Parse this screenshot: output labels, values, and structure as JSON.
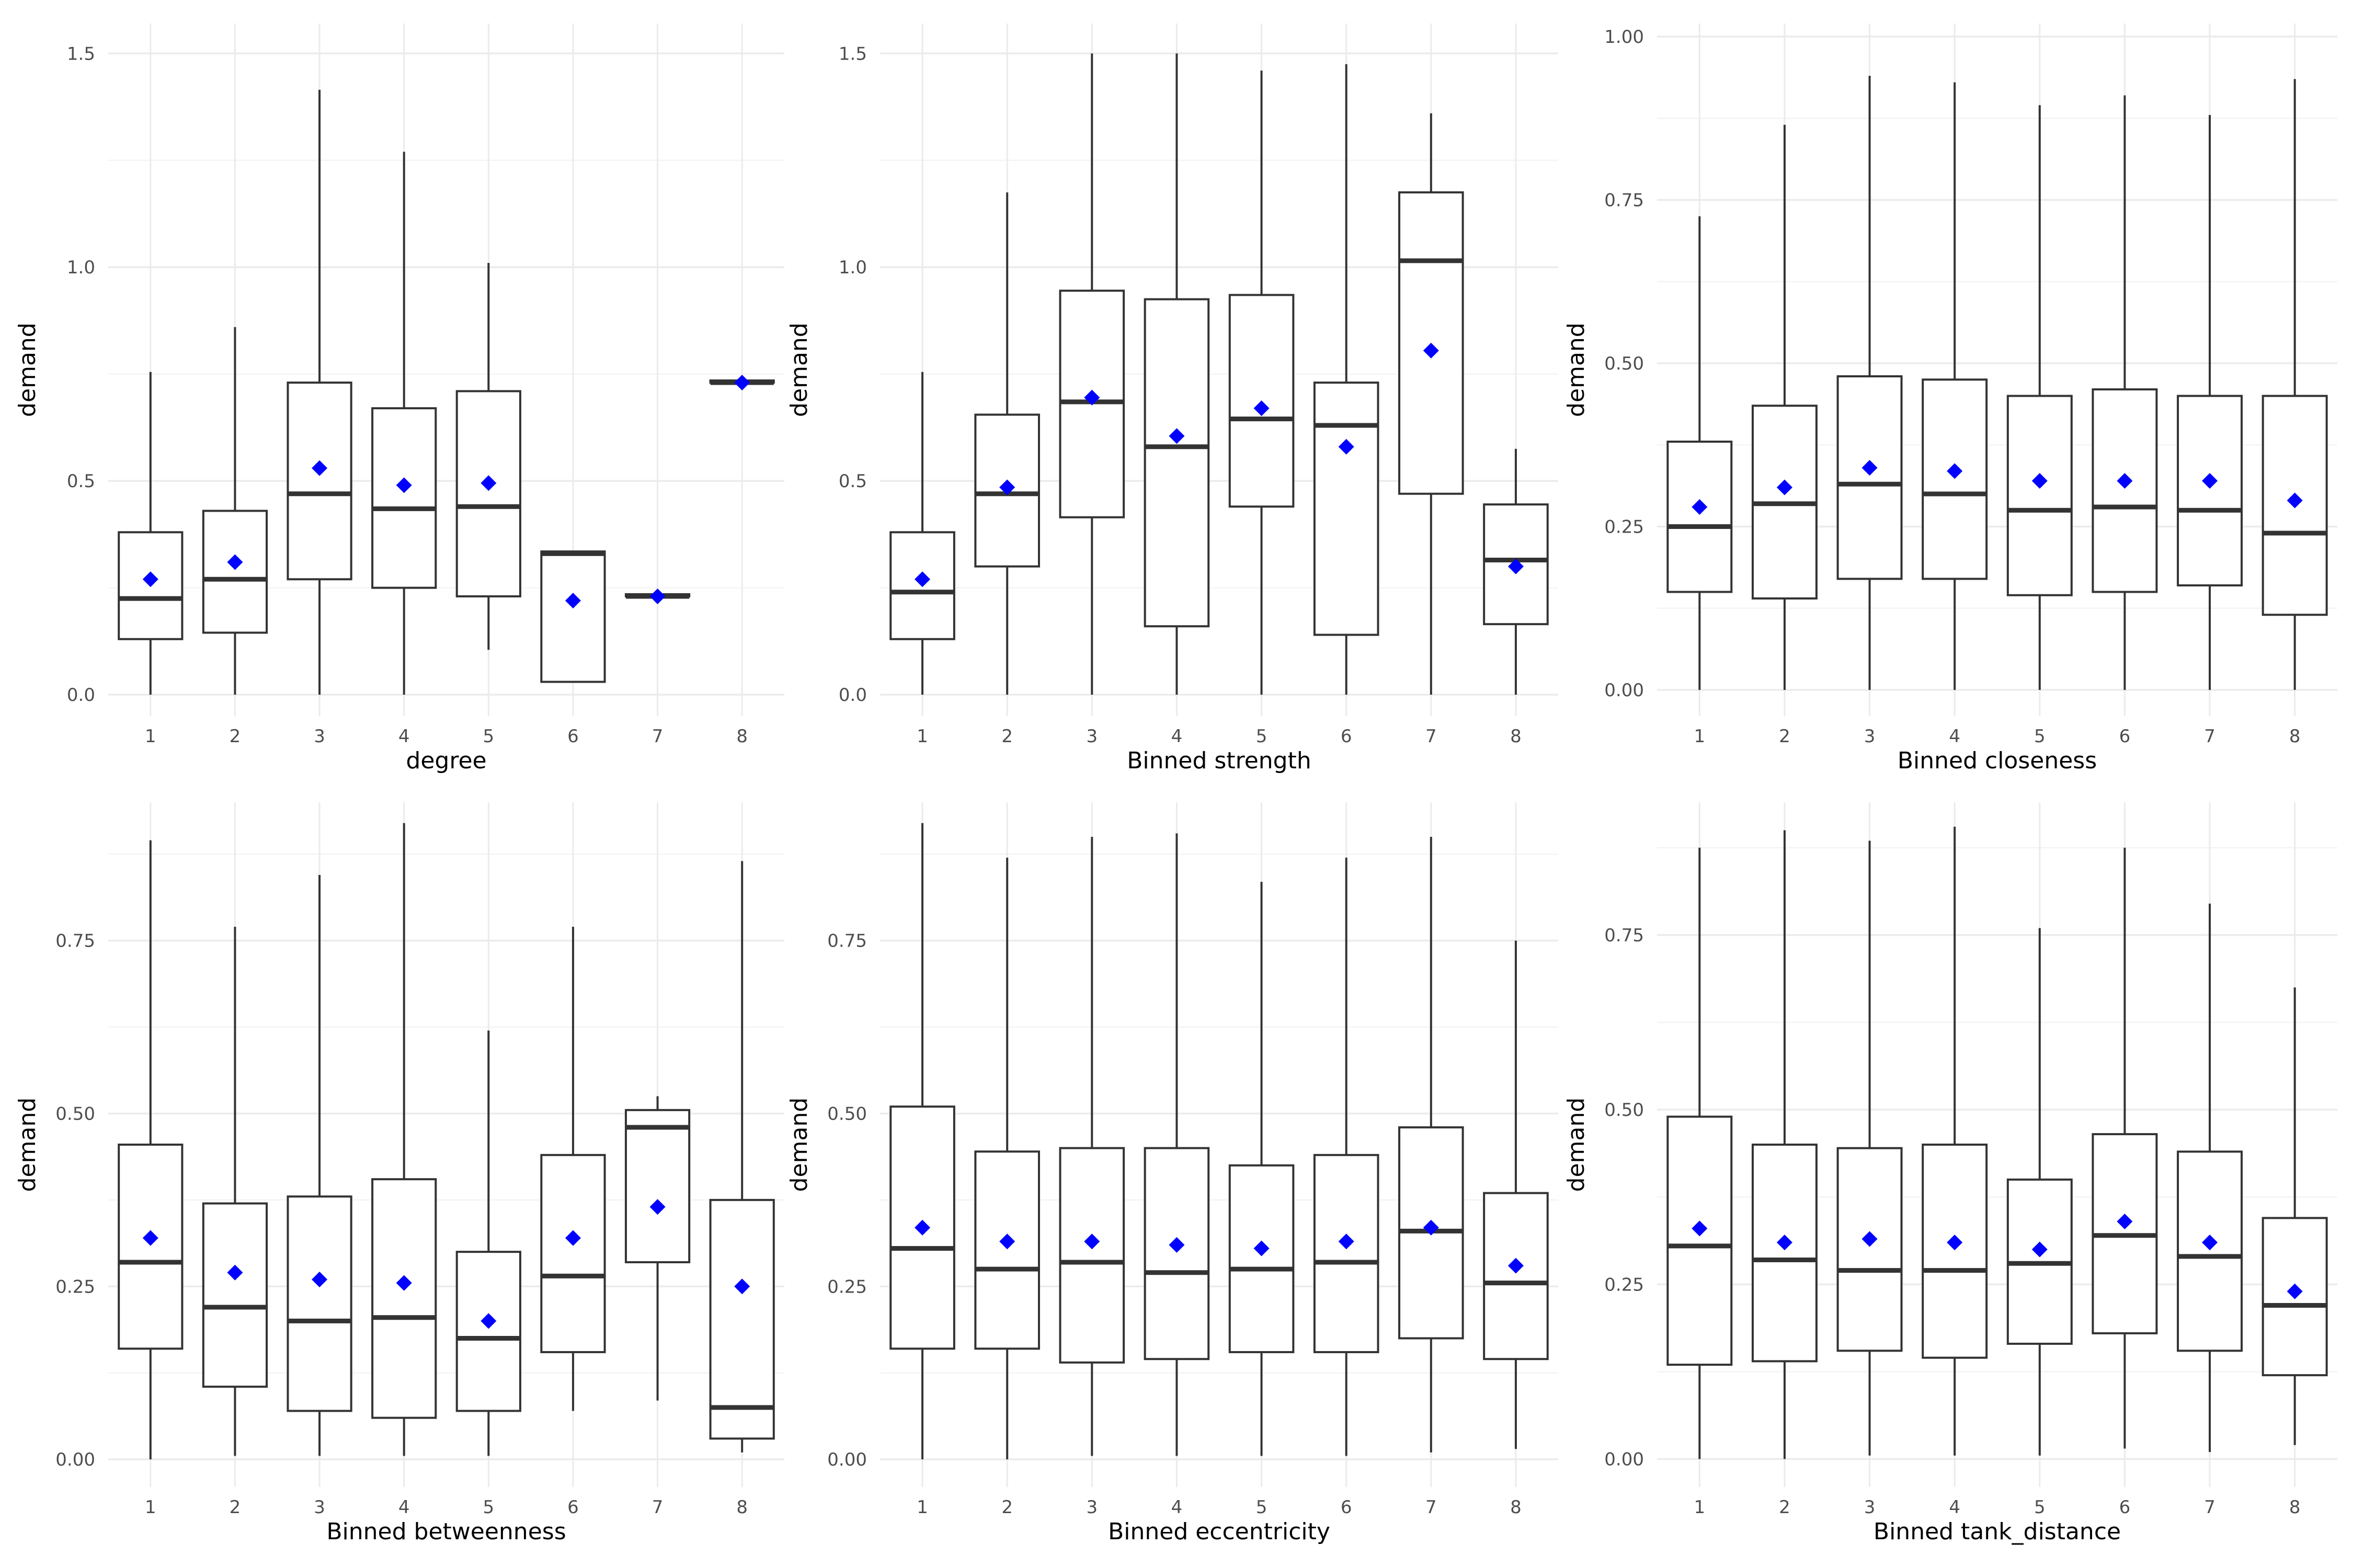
{
  "chart_data": [
    {
      "type": "boxplot",
      "xlabel": "degree",
      "ylabel": "demand",
      "categories": [
        "1",
        "2",
        "3",
        "4",
        "5",
        "6",
        "7",
        "8"
      ],
      "ylim": [
        -0.05,
        1.57
      ],
      "yticks": [
        0.0,
        0.5,
        1.0,
        1.5
      ],
      "ytick_labels": [
        "0.0",
        "0.5",
        "1.0",
        "1.5"
      ],
      "grid": true,
      "boxes": [
        {
          "min": 0.0,
          "q1": 0.13,
          "median": 0.225,
          "q3": 0.38,
          "max": 0.755,
          "mean": 0.27
        },
        {
          "min": 0.0,
          "q1": 0.145,
          "median": 0.27,
          "q3": 0.43,
          "max": 0.86,
          "mean": 0.31
        },
        {
          "min": 0.0,
          "q1": 0.27,
          "median": 0.47,
          "q3": 0.73,
          "max": 1.415,
          "mean": 0.53
        },
        {
          "min": 0.0,
          "q1": 0.25,
          "median": 0.435,
          "q3": 0.67,
          "max": 1.27,
          "mean": 0.49
        },
        {
          "min": 0.105,
          "q1": 0.23,
          "median": 0.44,
          "q3": 0.71,
          "max": 1.01,
          "mean": 0.495
        },
        {
          "min": 0.03,
          "q1": 0.03,
          "median": 0.33,
          "q3": 0.335,
          "max": 0.335,
          "mean": 0.22
        },
        {
          "min": 0.23,
          "q1": 0.23,
          "median": 0.23,
          "q3": 0.235,
          "max": 0.235,
          "mean": 0.23
        },
        {
          "min": 0.73,
          "q1": 0.73,
          "median": 0.73,
          "q3": 0.735,
          "max": 0.735,
          "mean": 0.73
        }
      ]
    },
    {
      "type": "boxplot",
      "xlabel": "Binned strength",
      "ylabel": "demand",
      "categories": [
        "1",
        "2",
        "3",
        "4",
        "5",
        "6",
        "7",
        "8"
      ],
      "ylim": [
        -0.05,
        1.57
      ],
      "yticks": [
        0.0,
        0.5,
        1.0,
        1.5
      ],
      "ytick_labels": [
        "0.0",
        "0.5",
        "1.0",
        "1.5"
      ],
      "grid": true,
      "boxes": [
        {
          "min": 0.0,
          "q1": 0.13,
          "median": 0.24,
          "q3": 0.38,
          "max": 0.755,
          "mean": 0.27
        },
        {
          "min": 0.0,
          "q1": 0.3,
          "median": 0.47,
          "q3": 0.655,
          "max": 1.175,
          "mean": 0.485
        },
        {
          "min": 0.0,
          "q1": 0.415,
          "median": 0.685,
          "q3": 0.945,
          "max": 1.5,
          "mean": 0.695
        },
        {
          "min": 0.0,
          "q1": 0.16,
          "median": 0.58,
          "q3": 0.925,
          "max": 1.5,
          "mean": 0.605
        },
        {
          "min": 0.0,
          "q1": 0.44,
          "median": 0.645,
          "q3": 0.935,
          "max": 1.46,
          "mean": 0.67
        },
        {
          "min": 0.0,
          "q1": 0.14,
          "median": 0.63,
          "q3": 0.73,
          "max": 1.475,
          "mean": 0.58
        },
        {
          "min": 0.0,
          "q1": 0.47,
          "median": 1.015,
          "q3": 1.175,
          "max": 1.36,
          "mean": 0.805
        },
        {
          "min": 0.0,
          "q1": 0.165,
          "median": 0.315,
          "q3": 0.445,
          "max": 0.575,
          "mean": 0.3
        }
      ]
    },
    {
      "type": "boxplot",
      "xlabel": "Binned closeness",
      "ylabel": "demand",
      "categories": [
        "1",
        "2",
        "3",
        "4",
        "5",
        "6",
        "7",
        "8"
      ],
      "ylim": [
        -0.04,
        1.02
      ],
      "yticks": [
        0.0,
        0.25,
        0.5,
        0.75,
        1.0
      ],
      "ytick_labels": [
        "0.00",
        "0.25",
        "0.50",
        "0.75",
        "1.00"
      ],
      "grid": true,
      "boxes": [
        {
          "min": 0.0,
          "q1": 0.15,
          "median": 0.25,
          "q3": 0.38,
          "max": 0.725,
          "mean": 0.28
        },
        {
          "min": 0.0,
          "q1": 0.14,
          "median": 0.285,
          "q3": 0.435,
          "max": 0.865,
          "mean": 0.31
        },
        {
          "min": 0.0,
          "q1": 0.17,
          "median": 0.315,
          "q3": 0.48,
          "max": 0.94,
          "mean": 0.34
        },
        {
          "min": 0.0,
          "q1": 0.17,
          "median": 0.3,
          "q3": 0.475,
          "max": 0.93,
          "mean": 0.335
        },
        {
          "min": 0.0,
          "q1": 0.145,
          "median": 0.275,
          "q3": 0.45,
          "max": 0.895,
          "mean": 0.32
        },
        {
          "min": 0.0,
          "q1": 0.15,
          "median": 0.28,
          "q3": 0.46,
          "max": 0.91,
          "mean": 0.32
        },
        {
          "min": 0.0,
          "q1": 0.16,
          "median": 0.275,
          "q3": 0.45,
          "max": 0.88,
          "mean": 0.32
        },
        {
          "min": 0.0,
          "q1": 0.115,
          "median": 0.24,
          "q3": 0.45,
          "max": 0.935,
          "mean": 0.29
        }
      ]
    },
    {
      "type": "boxplot",
      "xlabel": "Binned betweenness",
      "ylabel": "demand",
      "categories": [
        "1",
        "2",
        "3",
        "4",
        "5",
        "6",
        "7",
        "8"
      ],
      "ylim": [
        -0.04,
        0.95
      ],
      "yticks": [
        0.0,
        0.25,
        0.5,
        0.75
      ],
      "ytick_labels": [
        "0.00",
        "0.25",
        "0.50",
        "0.75"
      ],
      "grid": true,
      "boxes": [
        {
          "min": 0.0,
          "q1": 0.16,
          "median": 0.285,
          "q3": 0.455,
          "max": 0.895,
          "mean": 0.32
        },
        {
          "min": 0.005,
          "q1": 0.105,
          "median": 0.22,
          "q3": 0.37,
          "max": 0.77,
          "mean": 0.27
        },
        {
          "min": 0.005,
          "q1": 0.07,
          "median": 0.2,
          "q3": 0.38,
          "max": 0.845,
          "mean": 0.26
        },
        {
          "min": 0.005,
          "q1": 0.06,
          "median": 0.205,
          "q3": 0.405,
          "max": 0.92,
          "mean": 0.255
        },
        {
          "min": 0.005,
          "q1": 0.07,
          "median": 0.175,
          "q3": 0.3,
          "max": 0.62,
          "mean": 0.2
        },
        {
          "min": 0.07,
          "q1": 0.155,
          "median": 0.265,
          "q3": 0.44,
          "max": 0.77,
          "mean": 0.32
        },
        {
          "min": 0.085,
          "q1": 0.285,
          "median": 0.48,
          "q3": 0.505,
          "max": 0.525,
          "mean": 0.365
        },
        {
          "min": 0.01,
          "q1": 0.03,
          "median": 0.075,
          "q3": 0.375,
          "max": 0.865,
          "mean": 0.25
        }
      ]
    },
    {
      "type": "boxplot",
      "xlabel": "Binned eccentricity",
      "ylabel": "demand",
      "categories": [
        "1",
        "2",
        "3",
        "4",
        "5",
        "6",
        "7",
        "8"
      ],
      "ylim": [
        -0.04,
        0.95
      ],
      "yticks": [
        0.0,
        0.25,
        0.5,
        0.75
      ],
      "ytick_labels": [
        "0.00",
        "0.25",
        "0.50",
        "0.75"
      ],
      "grid": true,
      "boxes": [
        {
          "min": 0.0,
          "q1": 0.16,
          "median": 0.305,
          "q3": 0.51,
          "max": 0.92,
          "mean": 0.335
        },
        {
          "min": 0.0,
          "q1": 0.16,
          "median": 0.275,
          "q3": 0.445,
          "max": 0.87,
          "mean": 0.315
        },
        {
          "min": 0.005,
          "q1": 0.14,
          "median": 0.285,
          "q3": 0.45,
          "max": 0.9,
          "mean": 0.315
        },
        {
          "min": 0.005,
          "q1": 0.145,
          "median": 0.27,
          "q3": 0.45,
          "max": 0.905,
          "mean": 0.31
        },
        {
          "min": 0.005,
          "q1": 0.155,
          "median": 0.275,
          "q3": 0.425,
          "max": 0.835,
          "mean": 0.305
        },
        {
          "min": 0.005,
          "q1": 0.155,
          "median": 0.285,
          "q3": 0.44,
          "max": 0.87,
          "mean": 0.315
        },
        {
          "min": 0.01,
          "q1": 0.175,
          "median": 0.33,
          "q3": 0.48,
          "max": 0.9,
          "mean": 0.335
        },
        {
          "min": 0.015,
          "q1": 0.145,
          "median": 0.255,
          "q3": 0.385,
          "max": 0.75,
          "mean": 0.28
        }
      ]
    },
    {
      "type": "boxplot",
      "xlabel": "Binned tank_distance",
      "ylabel": "demand",
      "categories": [
        "1",
        "2",
        "3",
        "4",
        "5",
        "6",
        "7",
        "8"
      ],
      "ylim": [
        -0.04,
        0.94
      ],
      "yticks": [
        0.0,
        0.25,
        0.5,
        0.75
      ],
      "ytick_labels": [
        "0.00",
        "0.25",
        "0.50",
        "0.75"
      ],
      "grid": true,
      "boxes": [
        {
          "min": 0.0,
          "q1": 0.135,
          "median": 0.305,
          "q3": 0.49,
          "max": 0.875,
          "mean": 0.33
        },
        {
          "min": 0.0,
          "q1": 0.14,
          "median": 0.285,
          "q3": 0.45,
          "max": 0.9,
          "mean": 0.31
        },
        {
          "min": 0.005,
          "q1": 0.155,
          "median": 0.27,
          "q3": 0.445,
          "max": 0.885,
          "mean": 0.315
        },
        {
          "min": 0.005,
          "q1": 0.145,
          "median": 0.27,
          "q3": 0.45,
          "max": 0.905,
          "mean": 0.31
        },
        {
          "min": 0.005,
          "q1": 0.165,
          "median": 0.28,
          "q3": 0.4,
          "max": 0.76,
          "mean": 0.3
        },
        {
          "min": 0.015,
          "q1": 0.18,
          "median": 0.32,
          "q3": 0.465,
          "max": 0.875,
          "mean": 0.34
        },
        {
          "min": 0.01,
          "q1": 0.155,
          "median": 0.29,
          "q3": 0.44,
          "max": 0.795,
          "mean": 0.31
        },
        {
          "min": 0.02,
          "q1": 0.12,
          "median": 0.22,
          "q3": 0.345,
          "max": 0.675,
          "mean": 0.24
        }
      ]
    }
  ],
  "colors": {
    "grid_major": "#ebebeb",
    "grid_minor": "#f4f4f4",
    "box_stroke": "#333333",
    "median": "#333333",
    "mean_marker": "#0000ff",
    "tick_label": "#4d4d4d",
    "axis_title": "#000000"
  },
  "icons": {
    "mean_marker": "diamond"
  }
}
